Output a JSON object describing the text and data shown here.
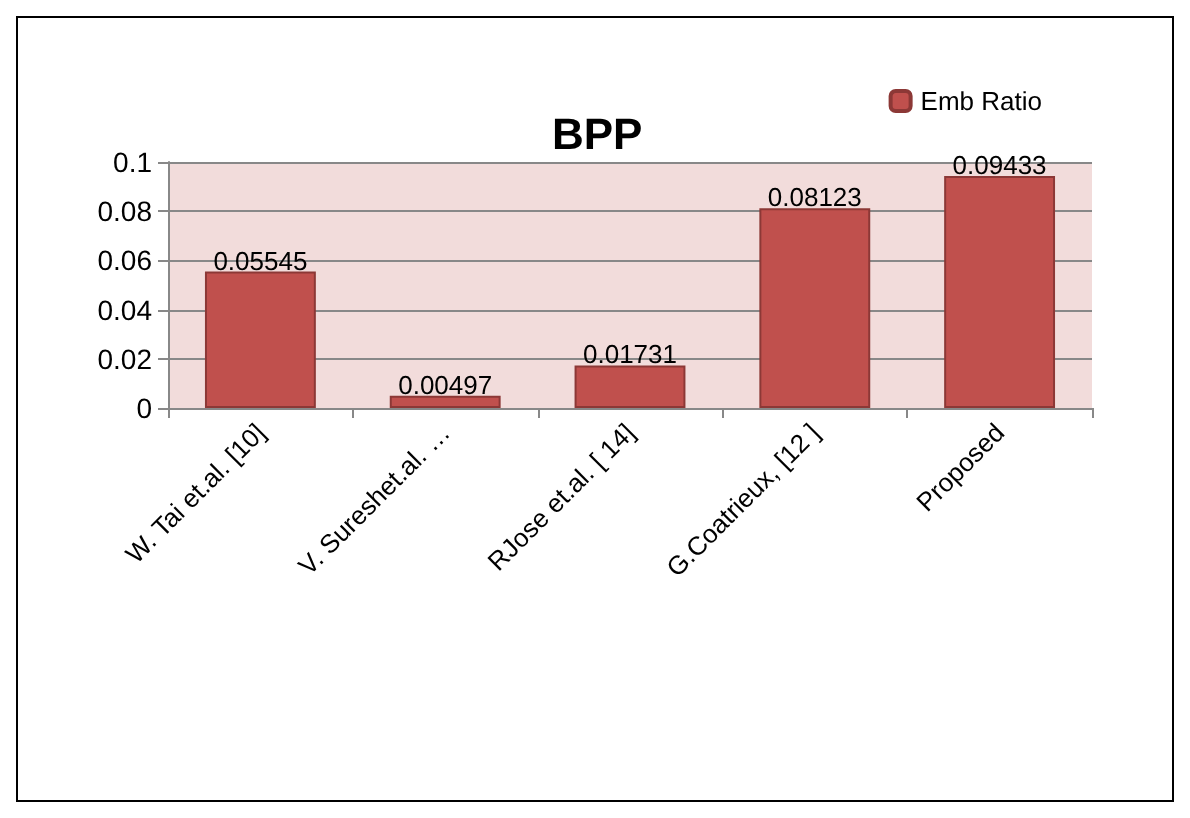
{
  "chart_data": {
    "type": "bar",
    "title": "BPP",
    "categories": [
      "W. Tai et.al. [10]",
      "V. Sureshet.al. …",
      "RJose et.al. [ 14]",
      "G.Coatrieux, [12 ]",
      "Proposed"
    ],
    "series": [
      {
        "name": "Emb Ratio",
        "color": "#c0504d",
        "values": [
          0.05545,
          0.00497,
          0.01731,
          0.08123,
          0.09433
        ]
      }
    ],
    "ylim": [
      0,
      0.1
    ],
    "yticks": [
      0,
      0.02,
      0.04,
      0.06,
      0.08,
      0.1
    ],
    "grid": "y",
    "legend": "top right",
    "data_labels": true
  }
}
